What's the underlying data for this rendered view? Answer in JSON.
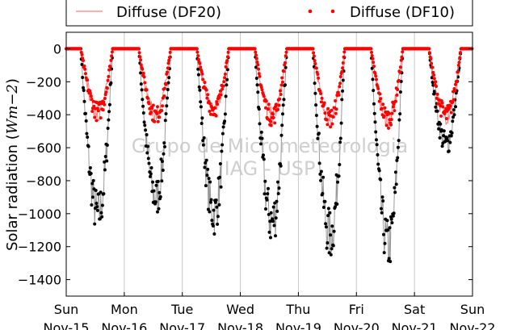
{
  "chart_data": {
    "type": "scatter",
    "title": "",
    "xlabel": "",
    "ylabel": "Solar radiation (Wm-2)",
    "ylabel_prefix": "Solar radiation (",
    "ylabel_unit": "Wm",
    "ylabel_exp": "−2",
    "ylabel_suffix": ")",
    "ylim": [
      -1500,
      100
    ],
    "xlim_days": [
      0,
      7
    ],
    "y_ticks": [
      {
        "value": 0,
        "label": "0"
      },
      {
        "value": -200,
        "label": "−200"
      },
      {
        "value": -400,
        "label": "−400"
      },
      {
        "value": -600,
        "label": "−600"
      },
      {
        "value": -800,
        "label": "−800"
      },
      {
        "value": -1000,
        "label": "−1000"
      },
      {
        "value": -1200,
        "label": "−1200"
      },
      {
        "value": -1400,
        "label": "−1400"
      }
    ],
    "x_ticks": [
      {
        "day": 0,
        "weekday": "Sun",
        "date": "Nov-15"
      },
      {
        "day": 1,
        "weekday": "Mon",
        "date": "Nov-16"
      },
      {
        "day": 2,
        "weekday": "Tue",
        "date": "Nov-17"
      },
      {
        "day": 3,
        "weekday": "Wed",
        "date": "Nov-18"
      },
      {
        "day": 4,
        "weekday": "Thu",
        "date": "Nov-19"
      },
      {
        "day": 5,
        "weekday": "Fri",
        "date": "Nov-20"
      },
      {
        "day": 6,
        "weekday": "Sat",
        "date": "Nov-21"
      },
      {
        "day": 7,
        "weekday": "Sun",
        "date": "Nov-22"
      }
    ],
    "grid": "vertical",
    "legend_position": "top-outside",
    "watermark": [
      "Grupo de Micrometeorologia",
      "IAG - USP"
    ],
    "series": [
      {
        "name": "Diffuse (DF20)",
        "style": "line",
        "color": "#ff7f7f",
        "days": [
          {
            "min": -400,
            "spread": 120
          },
          {
            "min": -420,
            "spread": 110
          },
          {
            "min": -380,
            "spread": 110
          },
          {
            "min": -430,
            "spread": 120
          },
          {
            "min": -440,
            "spread": 120
          },
          {
            "min": -440,
            "spread": 120
          },
          {
            "min": -420,
            "spread": 120
          }
        ]
      },
      {
        "name": "Diffuse (DF10)",
        "style": "dots",
        "color": "#ff0000",
        "days": [
          {
            "min": -400,
            "spread": 120
          },
          {
            "min": -420,
            "spread": 110
          },
          {
            "min": -380,
            "spread": 110
          },
          {
            "min": -430,
            "spread": 120
          },
          {
            "min": -440,
            "spread": 120
          },
          {
            "min": -440,
            "spread": 120
          },
          {
            "min": -420,
            "spread": 120
          }
        ]
      },
      {
        "name": "",
        "style": "dots-line",
        "color": "#000000",
        "days": [
          {
            "min": -1050,
            "spread": 300
          },
          {
            "min": -940,
            "spread": 250
          },
          {
            "min": -1040,
            "spread": 280
          },
          {
            "min": -1100,
            "spread": 320
          },
          {
            "min": -1180,
            "spread": 320
          },
          {
            "min": -1240,
            "spread": 320
          },
          {
            "min": -600,
            "spread": 150
          }
        ]
      }
    ]
  }
}
